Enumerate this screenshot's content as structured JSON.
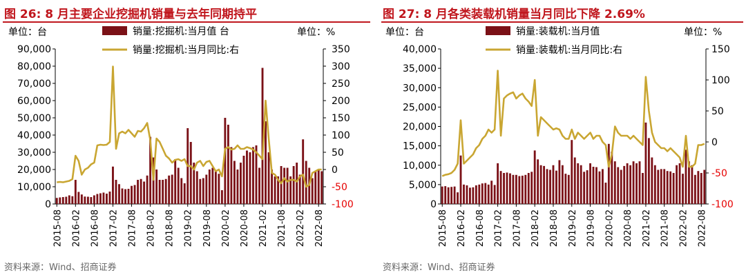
{
  "panels": [
    {
      "title": "图 26: 8 月主要企业挖掘机销量与去年同期持平",
      "source": "资料来源：Wind、招商证券",
      "chart_data": {
        "type": "bar",
        "unit_left": "单位：台",
        "unit_right": "单位：%",
        "legend_position": "top",
        "y_left": {
          "min": 0,
          "max": 90000,
          "ticks": [
            0,
            10000,
            20000,
            30000,
            40000,
            50000,
            60000,
            70000,
            80000,
            90000
          ],
          "tick_labels": [
            "0",
            "10,000",
            "20,000",
            "30,000",
            "40,000",
            "50,000",
            "60,000",
            "70,000",
            "80,000",
            "90,000"
          ]
        },
        "y_right": {
          "min": -100,
          "max": 350,
          "ticks": [
            -100,
            -50,
            0,
            50,
            100,
            150,
            200,
            250,
            300,
            350
          ],
          "tick_labels": [
            "-100",
            "-50",
            "0",
            "50",
            "100",
            "150",
            "200",
            "250",
            "300",
            "350"
          ],
          "negative_color": "#e60000"
        },
        "x_tick_labels": [
          "2015-08",
          "2016-02",
          "2016-08",
          "2017-02",
          "2017-08",
          "2018-02",
          "2018-08",
          "2019-02",
          "2019-08",
          "2020-02",
          "2020-08",
          "2021-02",
          "2021-08",
          "2022-02",
          "2022-08"
        ],
        "x_tick_index": [
          0,
          6,
          12,
          18,
          24,
          30,
          36,
          42,
          48,
          54,
          60,
          66,
          72,
          78,
          84
        ],
        "series": [
          {
            "name": "销量:挖掘机:当月值 台",
            "type": "bar",
            "axis": "left",
            "color": "#7b1117",
            "values": [
              3500,
              3800,
              4000,
              4200,
              5000,
              4500,
              14000,
              7000,
              5500,
              4300,
              4200,
              4000,
              5000,
              5800,
              6200,
              6600,
              6000,
              7200,
              21700,
              14000,
              11500,
              9000,
              8600,
              8800,
              10500,
              11000,
              14000,
              14500,
              13000,
              16500,
              39000,
              27000,
              20000,
              14000,
              14000,
              14500,
              16500,
              17000,
              26000,
              21000,
              15000,
              12000,
              44000,
              36000,
              24000,
              19000,
              14500,
              15000,
              17000,
              20000,
              21000,
              19000,
              17500,
              8000,
              50000,
              46000,
              33000,
              25000,
              20000,
              24000,
              28000,
              31000,
              30000,
              33000,
              34000,
              21000,
              79000,
              48000,
              30000,
              20000,
              16000,
              16000,
              22000,
              21000,
              21000,
              16000,
              22000,
              24000,
              17000,
              37500,
              25000,
              21000,
              15000,
              19000,
              20000,
              19000
            ]
          },
          {
            "name": "销量:挖掘机:当月同比:右",
            "type": "line",
            "axis": "right",
            "color": "#c9a632",
            "values": [
              -37,
              -36,
              -37,
              -35,
              -33,
              -28,
              40,
              25,
              -15,
              0,
              5,
              15,
              20,
              70,
              72,
              71,
              72,
              80,
              299,
              60,
              105,
              110,
              105,
              115,
              105,
              95,
              112,
              110,
              120,
              135,
              85,
              -30,
              90,
              80,
              60,
              40,
              32,
              20,
              28,
              30,
              25,
              30,
              10,
              10,
              0,
              20,
              25,
              10,
              22,
              25,
              10,
              -5,
              0,
              -20,
              60,
              65,
              58,
              60,
              70,
              60,
              60,
              65,
              62,
              58,
              50,
              40,
              30,
              200,
              90,
              -10,
              -15,
              -30,
              -40,
              -25,
              -35,
              -30,
              -30,
              -35,
              -20,
              -15,
              -50,
              -45,
              -10,
              -5,
              0,
              0
            ]
          }
        ]
      }
    },
    {
      "title": "图 27: 8 月各类装载机销量当月同比下降 2.69%",
      "source": "资料来源：Wind、招商证券",
      "chart_data": {
        "type": "bar",
        "unit_left": "单位：台",
        "unit_right": "单位：%",
        "legend_position": "top",
        "y_left": {
          "min": 0,
          "max": 40000,
          "ticks": [
            0,
            5000,
            10000,
            15000,
            20000,
            25000,
            30000,
            35000,
            40000
          ],
          "tick_labels": [
            "0",
            "5,000",
            "10,000",
            "15,000",
            "20,000",
            "25,000",
            "30,000",
            "35,000",
            "40,000"
          ]
        },
        "y_right": {
          "min": -100,
          "max": 150,
          "ticks": [
            -100,
            -50,
            0,
            50,
            100,
            150
          ],
          "tick_labels": [
            "-100",
            "-50",
            "0",
            "50",
            "100",
            "150"
          ],
          "negative_color": "#e60000"
        },
        "x_tick_labels": [
          "2015-08",
          "2016-02",
          "2016-08",
          "2017-02",
          "2017-08",
          "2018-02",
          "2018-08",
          "2019-02",
          "2019-08",
          "2020-02",
          "2020-08",
          "2021-02",
          "2021-08",
          "2022-02",
          "2022-08"
        ],
        "x_tick_index": [
          0,
          6,
          12,
          18,
          24,
          30,
          36,
          42,
          48,
          54,
          60,
          66,
          72,
          78,
          84
        ],
        "series": [
          {
            "name": "销量:装载机:当月值",
            "type": "bar",
            "axis": "left",
            "color": "#7b1117",
            "values": [
              4500,
              4600,
              4300,
              4400,
              4500,
              3000,
              12500,
              5000,
              4800,
              4200,
              4300,
              4800,
              5000,
              5300,
              5400,
              5000,
              6000,
              4900,
              10500,
              8500,
              8000,
              8100,
              7900,
              7500,
              7500,
              7200,
              7300,
              7500,
              8000,
              8300,
              13800,
              11500,
              10000,
              9800,
              9000,
              8800,
              10000,
              8600,
              11300,
              10000,
              7800,
              7500,
              16500,
              12000,
              10500,
              10000,
              8300,
              8700,
              10500,
              9600,
              9500,
              8400,
              9000,
              5500,
              15500,
              13500,
              11000,
              9500,
              8800,
              9800,
              10500,
              10000,
              11000,
              10500,
              11000,
              8000,
              21000,
              17000,
              12000,
              10000,
              8800,
              9000,
              9000,
              8500,
              8400,
              8000,
              10000,
              10500,
              7800,
              14000,
              11000,
              10000,
              7500,
              8500,
              8000,
              8800
            ]
          },
          {
            "name": "销量:装载机:当月同比:右",
            "type": "line",
            "axis": "right",
            "color": "#c9a632",
            "values": [
              -55,
              -53,
              -52,
              -50,
              -45,
              -35,
              35,
              -35,
              -30,
              -25,
              -20,
              -10,
              -5,
              5,
              10,
              20,
              15,
              20,
              115,
              10,
              70,
              75,
              78,
              80,
              70,
              75,
              78,
              70,
              65,
              58,
              100,
              10,
              40,
              35,
              30,
              25,
              20,
              22,
              20,
              10,
              5,
              5,
              20,
              5,
              15,
              10,
              5,
              10,
              15,
              5,
              10,
              10,
              0,
              -5,
              -40,
              -20,
              25,
              15,
              10,
              10,
              10,
              5,
              10,
              5,
              0,
              -5,
              105,
              50,
              15,
              0,
              -5,
              -10,
              -10,
              -15,
              -10,
              -15,
              -20,
              -25,
              -40,
              10,
              -40,
              -40,
              -35,
              -5,
              -5,
              -3
            ]
          }
        ]
      }
    }
  ]
}
